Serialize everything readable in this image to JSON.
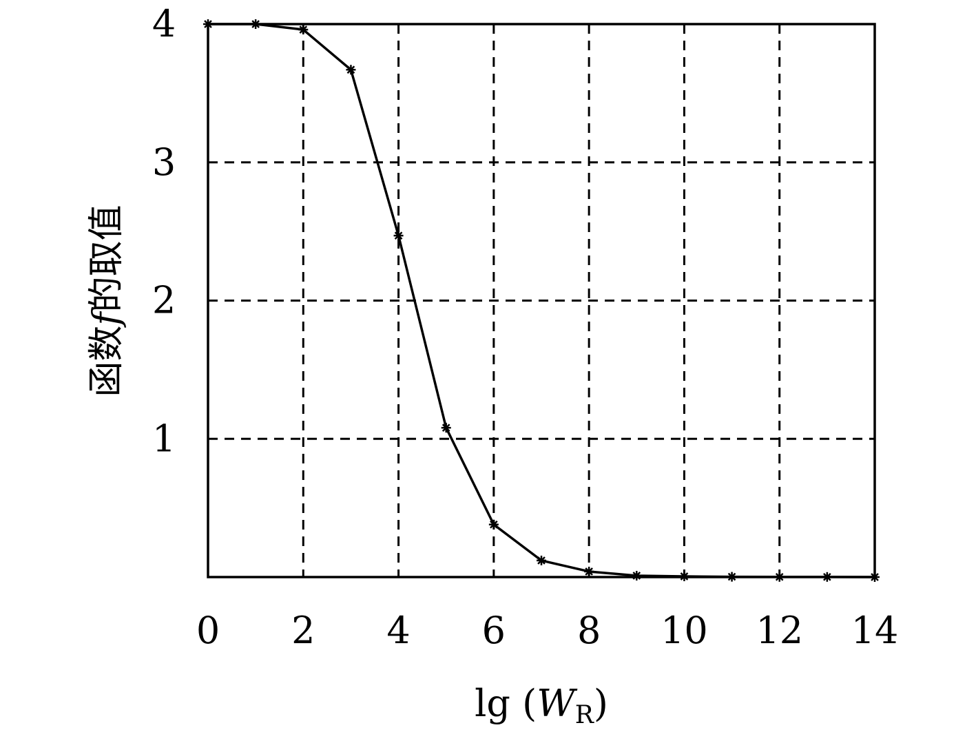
{
  "chart_data": {
    "type": "line",
    "title": "",
    "xlabel": {
      "prefix": "lg (",
      "var": "W",
      "sub": "R",
      "suffix": ")"
    },
    "ylabel": {
      "pre": "函数",
      "var": "f",
      "post": "的取值"
    },
    "xlim": [
      0,
      14
    ],
    "ylim": [
      0,
      4
    ],
    "x_ticks": [
      "0",
      "2",
      "4",
      "6",
      "8",
      "10",
      "12",
      "14"
    ],
    "y_ticks": [
      "1",
      "2",
      "3",
      "4"
    ],
    "grid": true,
    "marker": "asterisk",
    "color": "#000000",
    "series": [
      {
        "x": [
          0,
          1,
          2,
          3,
          4,
          5,
          6,
          7,
          8,
          9,
          10,
          11,
          12,
          13,
          14
        ],
        "y": [
          4.0,
          4.0,
          3.96,
          3.67,
          2.47,
          1.08,
          0.38,
          0.12,
          0.04,
          0.01,
          0.005,
          0.002,
          0.001,
          0.001,
          0.0
        ]
      }
    ]
  }
}
